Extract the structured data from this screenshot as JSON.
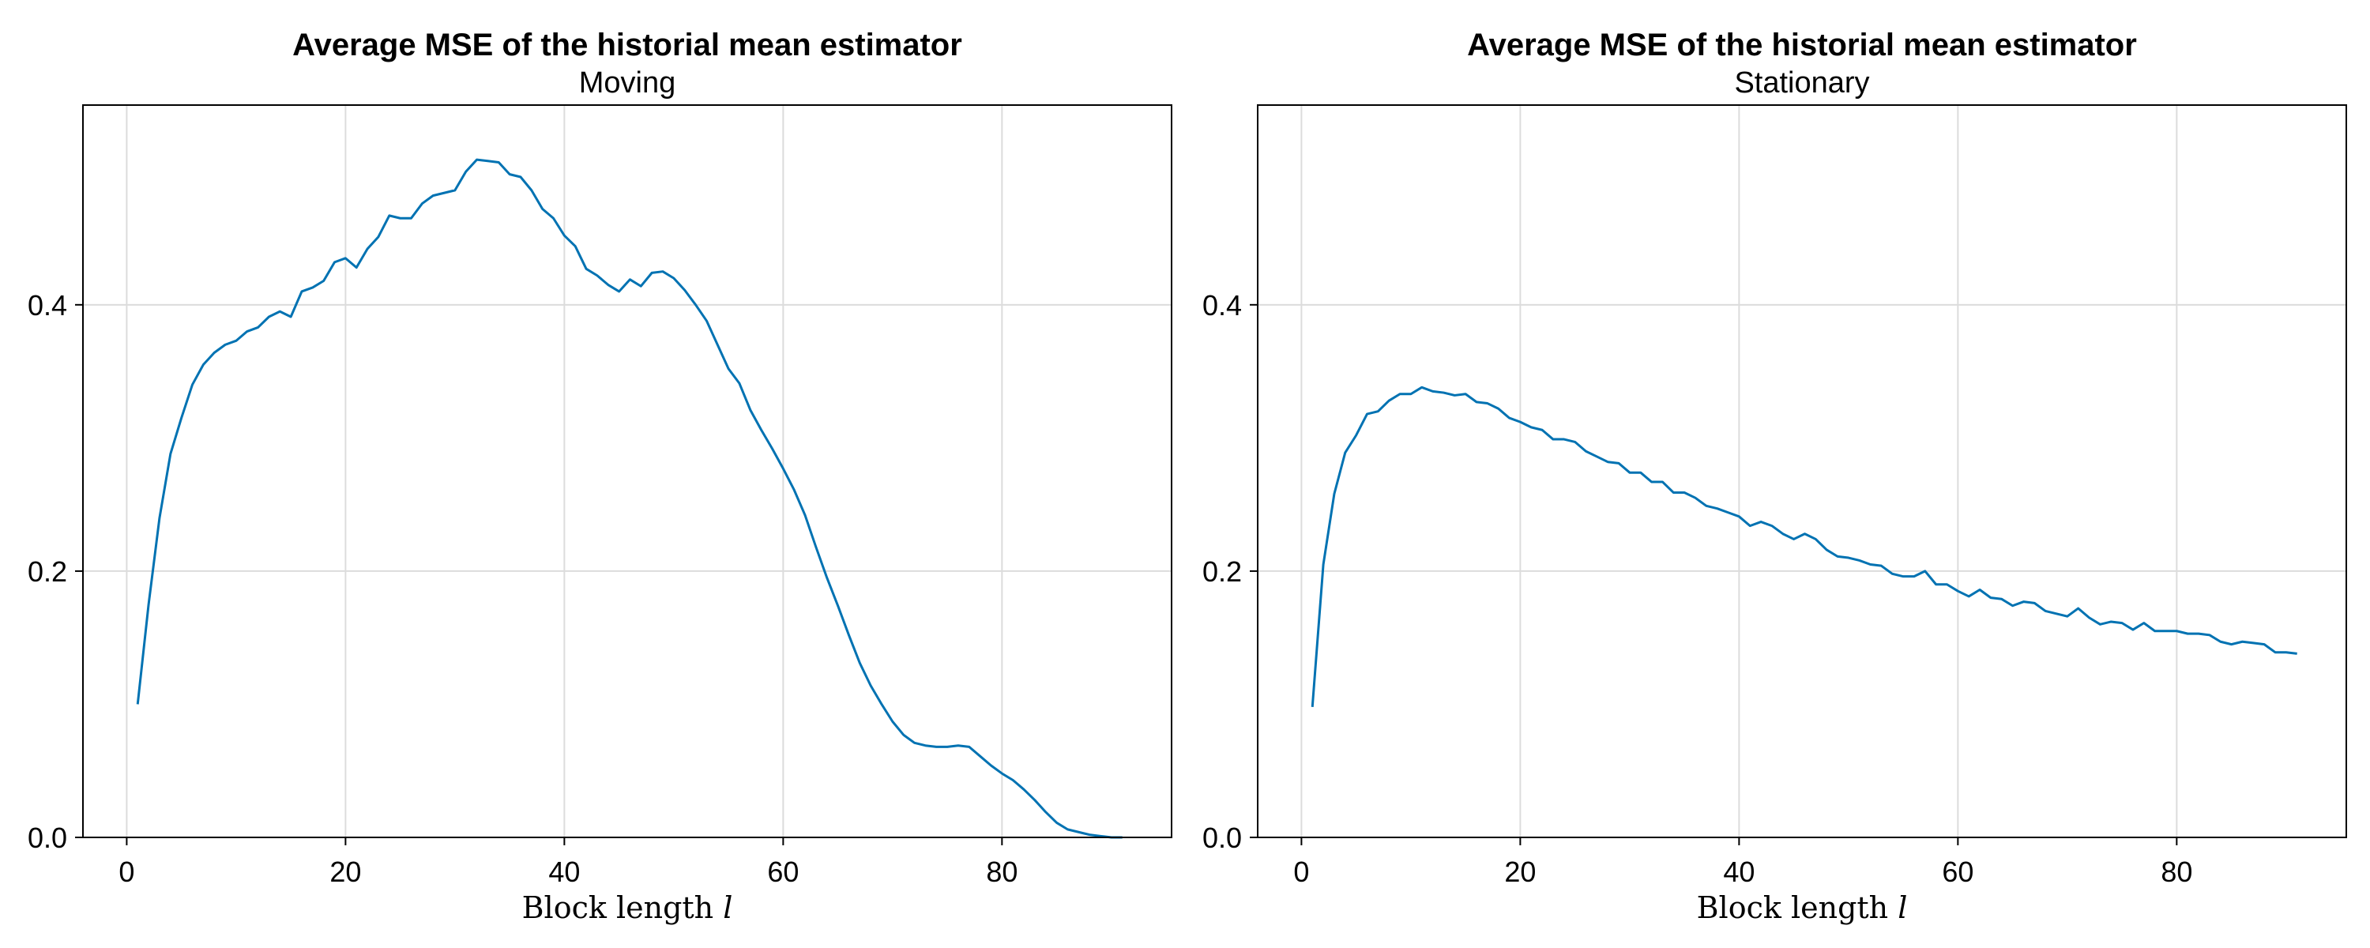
{
  "chart_data": [
    {
      "type": "line",
      "title": "Average MSE of the historial mean estimator",
      "subtitle": "Moving",
      "xlabel_text": "Block length ",
      "xlabel_var": "l",
      "ylabel": "",
      "xlim": [
        -4,
        95.5
      ],
      "ylim": [
        0,
        0.55
      ],
      "xticks": [
        0,
        20,
        40,
        60,
        80
      ],
      "xtick_labels": [
        "0",
        "20",
        "40",
        "60",
        "80"
      ],
      "yticks": [
        0.0,
        0.2,
        0.4
      ],
      "ytick_labels": [
        "0.0",
        "0.2",
        "0.4"
      ],
      "grid": true,
      "legend": "none",
      "series": [
        {
          "color": "#0072b2",
          "x": [
            1,
            2,
            3,
            4,
            5,
            6,
            7,
            8,
            9,
            10,
            11,
            12,
            13,
            14,
            15,
            16,
            17,
            18,
            19,
            20,
            21,
            22,
            23,
            24,
            25,
            26,
            27,
            28,
            29,
            30,
            31,
            32,
            33,
            34,
            35,
            36,
            37,
            38,
            39,
            40,
            41,
            42,
            43,
            44,
            45,
            46,
            47,
            48,
            49,
            50,
            51,
            52,
            53,
            54,
            55,
            56,
            57,
            58,
            59,
            60,
            61,
            62,
            63,
            64,
            65,
            66,
            67,
            68,
            69,
            70,
            71,
            72,
            73,
            74,
            75,
            76,
            77,
            78,
            79,
            80,
            81,
            82,
            83,
            84,
            85,
            86,
            87,
            88,
            89,
            90,
            91
          ],
          "y": [
            0.1,
            0.175,
            0.24,
            0.288,
            0.315,
            0.34,
            0.355,
            0.364,
            0.37,
            0.373,
            0.38,
            0.383,
            0.391,
            0.395,
            0.391,
            0.41,
            0.413,
            0.418,
            0.432,
            0.435,
            0.428,
            0.442,
            0.451,
            0.467,
            0.465,
            0.465,
            0.476,
            0.482,
            0.484,
            0.486,
            0.5,
            0.509,
            0.508,
            0.507,
            0.498,
            0.496,
            0.486,
            0.472,
            0.465,
            0.452,
            0.444,
            0.427,
            0.422,
            0.415,
            0.41,
            0.419,
            0.414,
            0.424,
            0.425,
            0.42,
            0.411,
            0.4,
            0.388,
            0.37,
            0.352,
            0.341,
            0.321,
            0.306,
            0.292,
            0.277,
            0.261,
            0.242,
            0.218,
            0.195,
            0.174,
            0.152,
            0.131,
            0.114,
            0.1,
            0.087,
            0.077,
            0.071,
            0.069,
            0.068,
            0.068,
            0.069,
            0.068,
            0.061,
            0.054,
            0.048,
            0.043,
            0.036,
            0.028,
            0.019,
            0.011,
            0.006,
            0.004,
            0.002,
            0.001,
            0.0,
            0.0
          ]
        }
      ]
    },
    {
      "type": "line",
      "title": "Average MSE of the historial mean estimator",
      "subtitle": "Stationary",
      "xlabel_text": "Block length ",
      "xlabel_var": "l",
      "ylabel": "",
      "xlim": [
        -4,
        95.5
      ],
      "ylim": [
        0,
        0.55
      ],
      "xticks": [
        0,
        20,
        40,
        60,
        80
      ],
      "xtick_labels": [
        "0",
        "20",
        "40",
        "60",
        "80"
      ],
      "yticks": [
        0.0,
        0.2,
        0.4
      ],
      "ytick_labels": [
        "0.0",
        "0.2",
        "0.4"
      ],
      "grid": true,
      "legend": "none",
      "series": [
        {
          "color": "#0072b2",
          "x": [
            1,
            2,
            3,
            4,
            5,
            6,
            7,
            8,
            9,
            10,
            11,
            12,
            13,
            14,
            15,
            16,
            17,
            18,
            19,
            20,
            21,
            22,
            23,
            24,
            25,
            26,
            27,
            28,
            29,
            30,
            31,
            32,
            33,
            34,
            35,
            36,
            37,
            38,
            39,
            40,
            41,
            42,
            43,
            44,
            45,
            46,
            47,
            48,
            49,
            50,
            51,
            52,
            53,
            54,
            55,
            56,
            57,
            58,
            59,
            60,
            61,
            62,
            63,
            64,
            65,
            66,
            67,
            68,
            69,
            70,
            71,
            72,
            73,
            74,
            75,
            76,
            77,
            78,
            79,
            80,
            81,
            82,
            83,
            84,
            85,
            86,
            87,
            88,
            89,
            90,
            91
          ],
          "y": [
            0.098,
            0.205,
            0.258,
            0.289,
            0.302,
            0.318,
            0.32,
            0.328,
            0.333,
            0.333,
            0.338,
            0.335,
            0.334,
            0.332,
            0.333,
            0.327,
            0.326,
            0.322,
            0.315,
            0.312,
            0.308,
            0.306,
            0.299,
            0.299,
            0.297,
            0.29,
            0.286,
            0.282,
            0.281,
            0.274,
            0.274,
            0.267,
            0.267,
            0.259,
            0.259,
            0.255,
            0.249,
            0.247,
            0.244,
            0.241,
            0.234,
            0.237,
            0.234,
            0.228,
            0.224,
            0.228,
            0.224,
            0.216,
            0.211,
            0.21,
            0.208,
            0.205,
            0.204,
            0.198,
            0.196,
            0.196,
            0.2,
            0.19,
            0.19,
            0.185,
            0.181,
            0.186,
            0.18,
            0.179,
            0.174,
            0.177,
            0.176,
            0.17,
            0.168,
            0.166,
            0.172,
            0.165,
            0.16,
            0.162,
            0.161,
            0.156,
            0.161,
            0.155,
            0.155,
            0.155,
            0.153,
            0.153,
            0.152,
            0.147,
            0.145,
            0.147,
            0.146,
            0.145,
            0.139,
            0.139,
            0.138
          ]
        }
      ]
    }
  ]
}
